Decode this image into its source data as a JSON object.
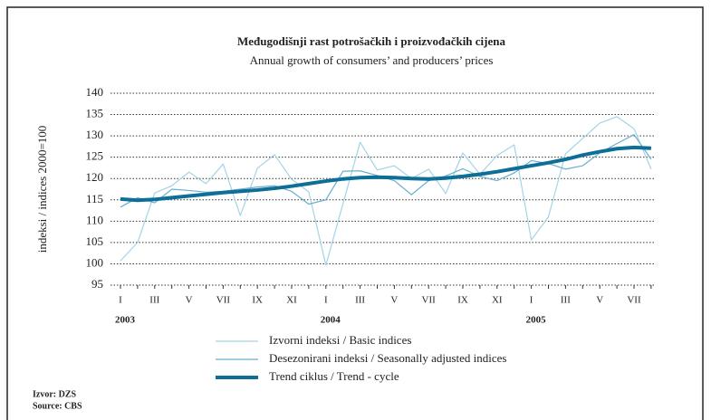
{
  "chart_data": {
    "type": "line",
    "title": "Međugodišnji rast potrošačkih i proizvođačkih cijena",
    "subtitle": "Annual growth of consumers’ and producers’ prices",
    "y_label": "indeksi / indices 2000=100",
    "categories": [
      "I",
      null,
      "III",
      null,
      "V",
      null,
      "VII",
      null,
      "IX",
      null,
      "XI",
      null,
      "I",
      null,
      "III",
      null,
      "V",
      null,
      "VII",
      null,
      "IX",
      null,
      "XI",
      null,
      "I",
      null,
      "III",
      null,
      "V",
      null,
      "VII",
      null
    ],
    "year_labels": [
      "2003",
      "2004",
      "2005"
    ],
    "series": [
      {
        "name": "Izvorni indeksi / Basic indices",
        "color": "#a3d4e6",
        "width": 1.2,
        "values": [
          100.7,
          105,
          116.6,
          118.3,
          121.5,
          118.8,
          123.4,
          111.3,
          122.4,
          125.6,
          119.8,
          116.9,
          99.7,
          114.1,
          128.5,
          122,
          123,
          120,
          122.2,
          116.5,
          126,
          121,
          125.4,
          127.9,
          105.6,
          111,
          125.8,
          129.4,
          133,
          134.5,
          131.7,
          122.2
        ]
      },
      {
        "name": "Desezonirani indeksi / Seasonally adjusted indices",
        "color": "#6aaed0",
        "width": 1.2,
        "values": [
          113.3,
          115.5,
          114.3,
          117.5,
          117.2,
          116.8,
          117,
          117.5,
          118,
          118.3,
          117,
          114,
          115,
          121.7,
          121.8,
          120.7,
          119.5,
          116.2,
          119.5,
          120.6,
          122.3,
          120.5,
          119.5,
          121.3,
          124.2,
          123.5,
          122.2,
          123,
          126,
          128.2,
          130.3,
          124.5
        ]
      },
      {
        "name": "Trend ciklus / Trend - cycle",
        "color": "#0d6e96",
        "width": 4,
        "values": [
          115.2,
          114.9,
          115.1,
          115.5,
          115.9,
          116.3,
          116.7,
          117,
          117.3,
          117.7,
          118.2,
          118.8,
          119.4,
          119.9,
          120.2,
          120.3,
          120.2,
          120,
          119.9,
          120.1,
          120.5,
          121,
          121.6,
          122.3,
          123,
          123.7,
          124.5,
          125.5,
          126.3,
          127,
          127.3,
          127.1
        ]
      }
    ],
    "ylim": [
      95,
      140
    ],
    "yticks": [
      95,
      100,
      105,
      110,
      115,
      120,
      125,
      130,
      135,
      140
    ],
    "grid": true,
    "source": [
      "Izvor: DZS",
      "Source: CBS"
    ]
  }
}
